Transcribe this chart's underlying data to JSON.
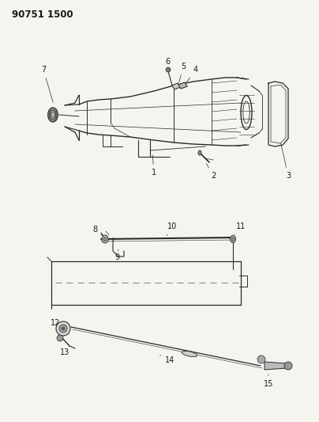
{
  "title": "90751 1500",
  "bg_color": "#f5f4ef",
  "line_color": "#2a2a2a",
  "label_color": "#1a1a1a",
  "label_fontsize": 7,
  "fig_width": 4.04,
  "fig_height": 5.33,
  "dpi": 100
}
